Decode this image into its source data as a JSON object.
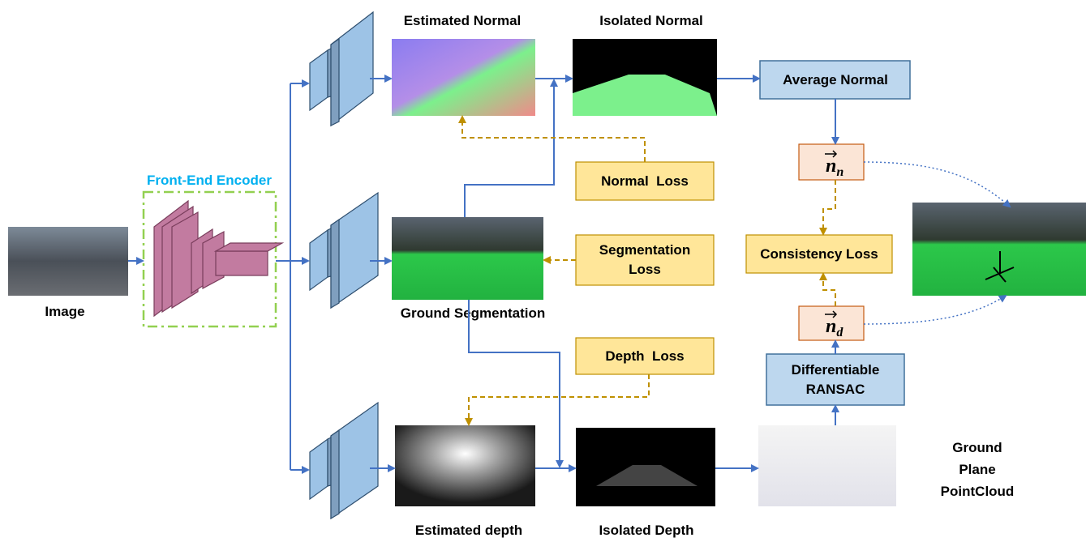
{
  "images": {
    "input": "Image",
    "estimated_normal": "Estimated Normal",
    "isolated_normal": "Isolated Normal",
    "ground_segmentation": "Ground Segmentation",
    "estimated_depth": "Estimated depth",
    "isolated_depth": "Isolated Depth"
  },
  "encoder": {
    "label": "Front-End Encoder"
  },
  "boxes": {
    "average_normal": "Average Normal",
    "consistency_loss": "Consistency Loss",
    "ransac": [
      "Differentiable",
      "RANSAC"
    ]
  },
  "losses": {
    "normal": "Normal  Loss",
    "segmentation": [
      "Segmentation",
      "Loss"
    ],
    "depth": "Depth  Loss"
  },
  "vectors": {
    "normal": {
      "symbol": "n",
      "subscript": "n"
    },
    "depth": {
      "symbol": "n",
      "subscript": "d"
    }
  },
  "pointcloud": {
    "label": [
      "Ground",
      "Plane",
      "PointCloud"
    ]
  }
}
